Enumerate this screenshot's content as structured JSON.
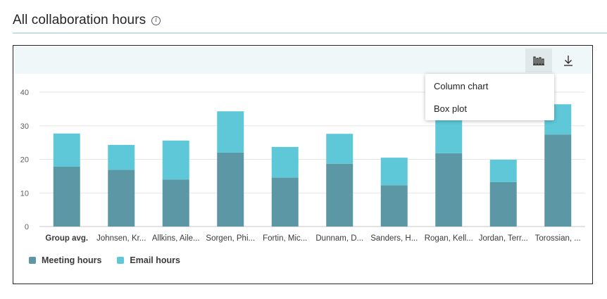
{
  "header": {
    "title": "All collaboration hours",
    "info_icon": "info-icon"
  },
  "toolbar": {
    "chart_type_icon": "column-chart-icon",
    "download_icon": "download-icon"
  },
  "menu": {
    "items": [
      "Column chart",
      "Box plot"
    ]
  },
  "colors": {
    "meeting": "#5b97a5",
    "email": "#5ec8d8",
    "grid": "#e6e6e6",
    "axis": "#c8c6c4"
  },
  "chart_data": {
    "type": "bar",
    "stacked": true,
    "title": "",
    "xlabel": "",
    "ylabel": "",
    "ylim": [
      0,
      40
    ],
    "yticks": [
      0,
      10,
      20,
      30,
      40
    ],
    "categories": [
      "Group avg.",
      "Johnsen, Kr...",
      "Allkins, Aile...",
      "Sorgen, Phi...",
      "Fortin, Mic...",
      "Dunnam, D...",
      "Sanders, H...",
      "Rogan, Kell...",
      "Jordan, Terr...",
      "Torossian, ..."
    ],
    "series": [
      {
        "name": "Meeting hours",
        "values": [
          17.8,
          16.9,
          14.0,
          22.0,
          14.6,
          18.7,
          12.3,
          21.8,
          13.2,
          27.4
        ]
      },
      {
        "name": "Email hours",
        "values": [
          9.9,
          7.4,
          11.6,
          12.3,
          9.1,
          8.9,
          8.2,
          10.6,
          6.7,
          9.0
        ]
      }
    ],
    "grid": true,
    "legend_position": "bottom-left"
  }
}
